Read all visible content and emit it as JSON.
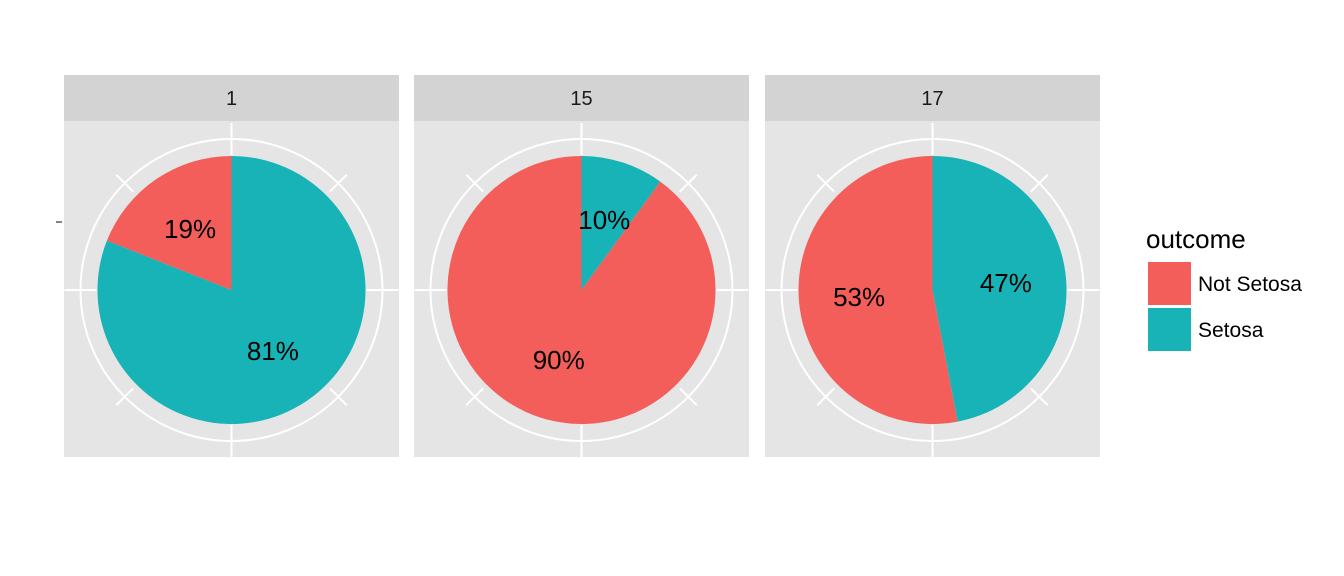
{
  "chart_data": {
    "type": "pie",
    "facet_variable_values": [
      "1",
      "15",
      "17"
    ],
    "legend": {
      "title": "outcome",
      "placement": "right",
      "entries": [
        "Not Setosa",
        "Setosa"
      ]
    },
    "colors": {
      "Not Setosa": "#F35E5A",
      "Setosa": "#17B3B7",
      "panel_background": "#E5E5E5",
      "strip_background": "#D3D3D3",
      "grid": "#FFFFFF"
    },
    "panels": [
      {
        "facet": "1",
        "slices": [
          {
            "category": "Setosa",
            "value": 81,
            "label": "81%"
          },
          {
            "category": "Not Setosa",
            "value": 19,
            "label": "19%"
          }
        ]
      },
      {
        "facet": "15",
        "slices": [
          {
            "category": "Setosa",
            "value": 10,
            "label": "10%"
          },
          {
            "category": "Not Setosa",
            "value": 90,
            "label": "90%"
          }
        ]
      },
      {
        "facet": "17",
        "slices": [
          {
            "category": "Setosa",
            "value": 47,
            "label": "47%"
          },
          {
            "category": "Not Setosa",
            "value": 53,
            "label": "53%"
          }
        ]
      }
    ]
  }
}
